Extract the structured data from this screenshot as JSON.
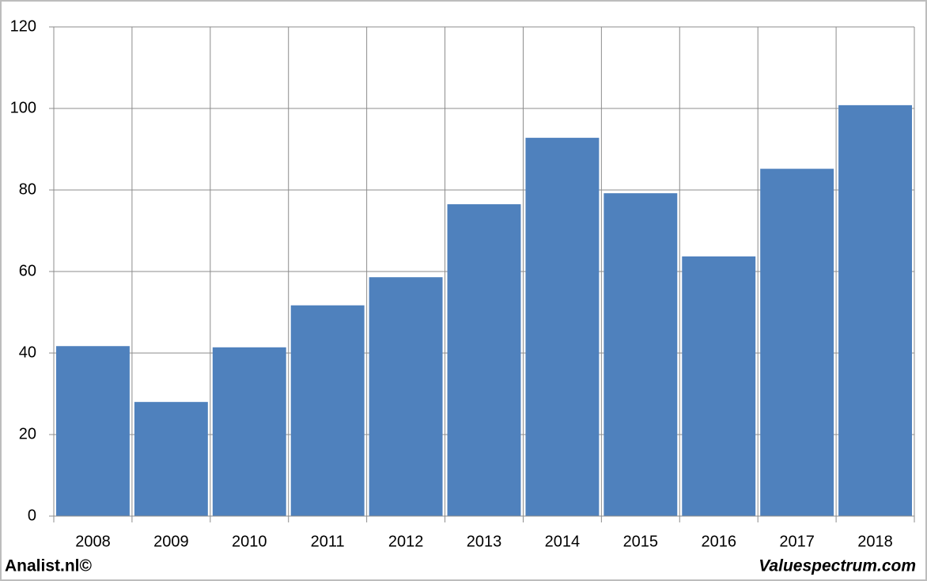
{
  "chart_data": {
    "type": "bar",
    "categories": [
      "2008",
      "2009",
      "2010",
      "2011",
      "2012",
      "2013",
      "2014",
      "2015",
      "2016",
      "2017",
      "2018"
    ],
    "values": [
      41.7,
      28,
      41.4,
      51.7,
      58.6,
      76.5,
      92.8,
      79.2,
      63.7,
      85.2,
      100.8
    ],
    "color": "#4f81bd",
    "ylim": [
      0,
      120
    ],
    "yticks": [
      0,
      20,
      40,
      60,
      80,
      100,
      120
    ],
    "grid": true,
    "footer_left": "Analist.nl©",
    "footer_right": "Valuespectrum.com"
  }
}
